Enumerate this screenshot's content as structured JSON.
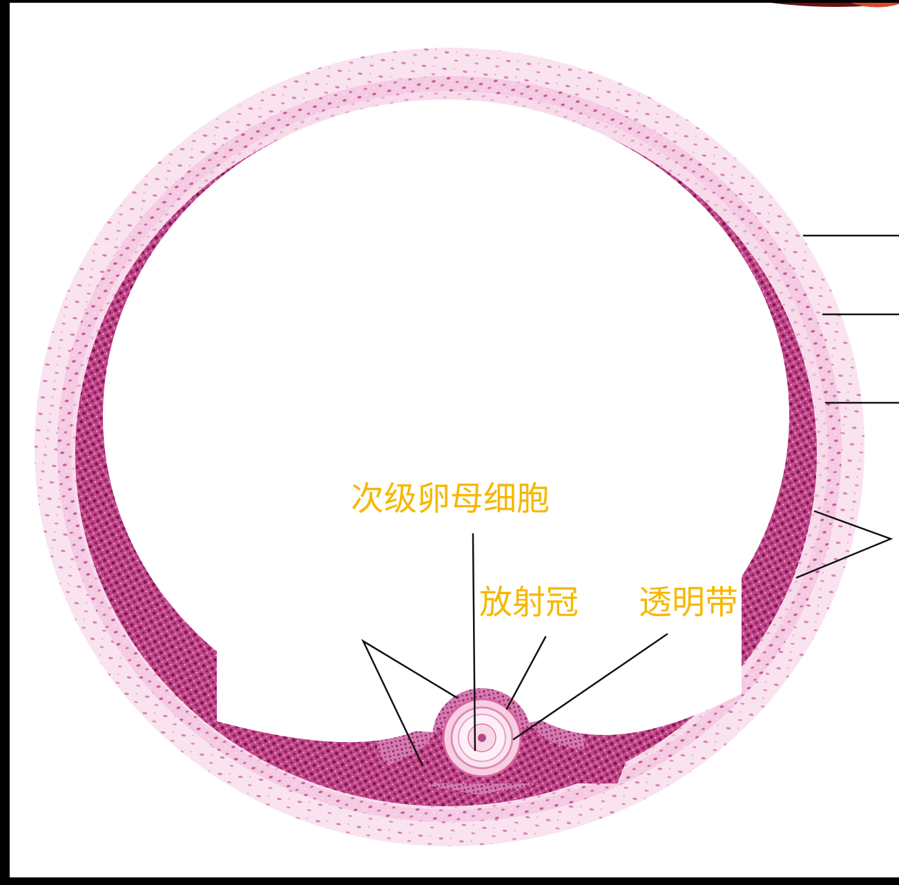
{
  "labels": {
    "secondary_oocyte": "次级卵母细胞",
    "corona_radiata": "放射冠",
    "zona_pellucida": "透明带"
  },
  "colors": {
    "label_text": "#F5B800",
    "pointer_line": "#111111",
    "stain_dark": "#b8337a",
    "stain_light": "#eeb5d6",
    "background": "#ffffff",
    "frame": "#000000"
  }
}
